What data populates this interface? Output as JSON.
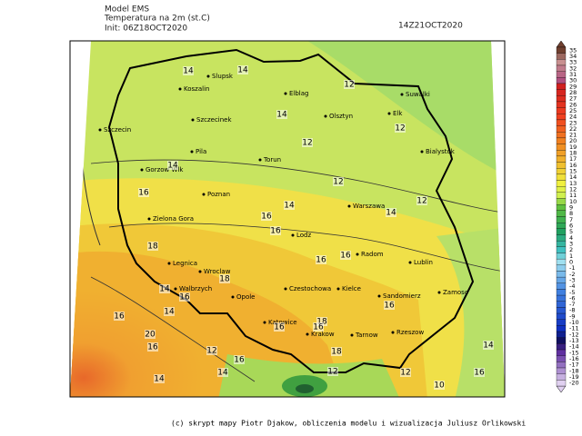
{
  "header": {
    "model": "Model EMS",
    "variable": "Temperatura na 2m (st.C)",
    "init": "Init: 06Z18OCT2020",
    "valid": "14Z21OCT2020"
  },
  "credit": "(c) skrypt mapy Piotr Djakow, obliczenia modelu i wizualizacja Juliusz Orlikowski",
  "colorbar": {
    "levels": [
      35,
      34,
      33,
      32,
      31,
      30,
      29,
      28,
      27,
      26,
      25,
      24,
      23,
      22,
      21,
      20,
      19,
      18,
      17,
      16,
      15,
      14,
      13,
      12,
      11,
      10,
      9,
      8,
      7,
      6,
      5,
      4,
      3,
      2,
      1,
      0,
      -1,
      -2,
      -3,
      -4,
      -5,
      -6,
      -7,
      -8,
      -9,
      -10,
      -11,
      -12,
      -13,
      -14,
      -15,
      -16,
      -17,
      -18,
      -19,
      -20
    ]
  },
  "cities": [
    "Slupsk",
    "Koszalin",
    "Elblag",
    "Suwalki",
    "Olsztyn",
    "Elk",
    "Szczecinek",
    "Szczecin",
    "Bialystok",
    "Pila",
    "Torun",
    "Gorzow Wlk",
    "Poznan",
    "Warszawa",
    "Zielona Gora",
    "Lodz",
    "Radom",
    "Lublin",
    "Legnica",
    "Wroclaw",
    "Walbrzych",
    "Czestochowa",
    "Kielce",
    "Opole",
    "Sandomierz",
    "Zamosc",
    "Katowice",
    "Krakow",
    "Tarnow",
    "Rzeszow"
  ],
  "contour_labels": [
    "14",
    "14",
    "12",
    "14",
    "12",
    "12",
    "14",
    "16",
    "12",
    "14",
    "16",
    "14",
    "12",
    "16",
    "18",
    "16",
    "16",
    "18",
    "14",
    "16",
    "14",
    "16",
    "18",
    "16",
    "20",
    "16",
    "12",
    "16",
    "14",
    "14",
    "12",
    "18",
    "12",
    "16",
    "10",
    "16",
    "14",
    "16"
  ]
}
